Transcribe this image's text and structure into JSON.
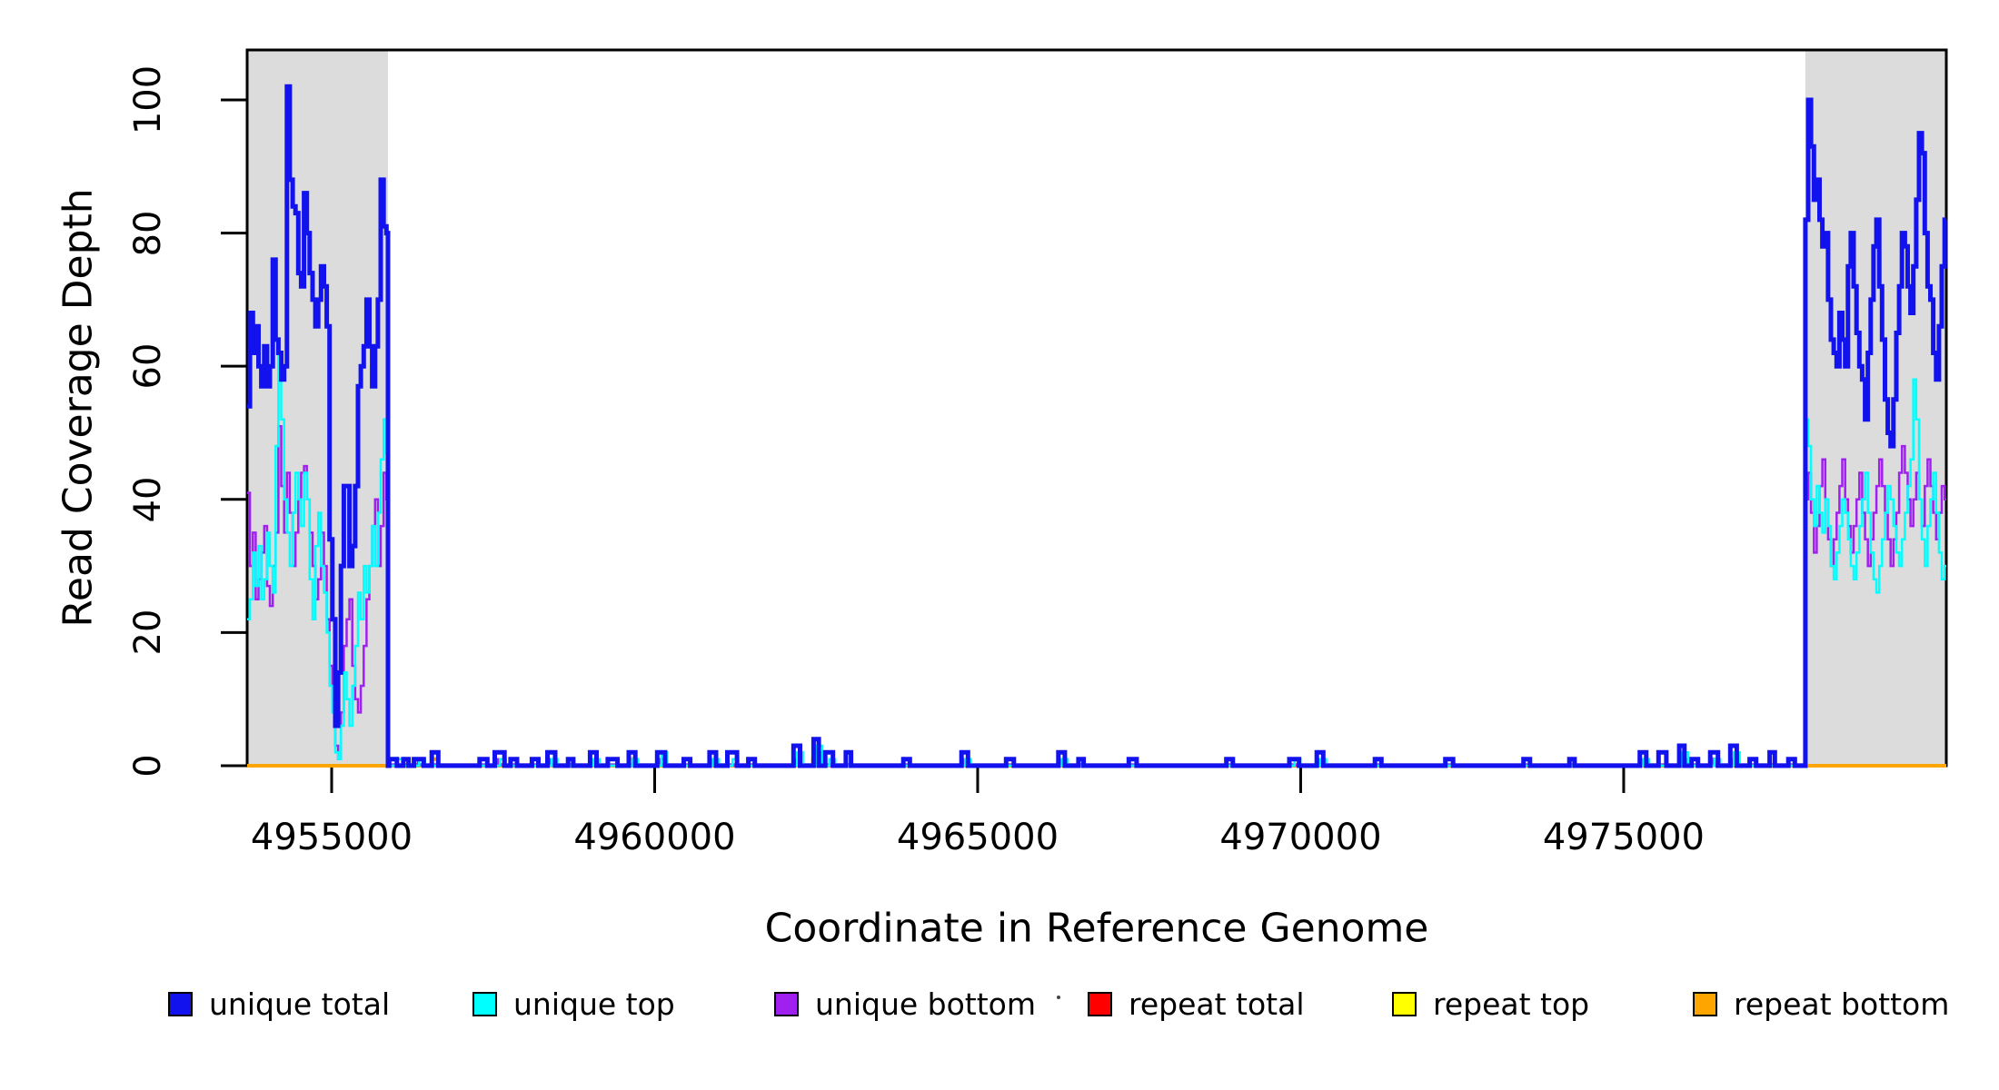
{
  "chart_data": {
    "type": "line",
    "subtype": "step-coverage",
    "title": "",
    "xlabel": "Coordinate in Reference Genome",
    "ylabel": "Read Coverage Depth",
    "xlim": [
      4953692,
      4979994
    ],
    "ylim": [
      0,
      107.5
    ],
    "x_ticks": [
      4955000,
      4960000,
      4965000,
      4970000,
      4975000
    ],
    "x_tick_labels": [
      "4955000",
      "4960000",
      "4965000",
      "4970000",
      "4975000"
    ],
    "y_ticks": [
      0,
      20,
      40,
      60,
      80,
      100
    ],
    "y_tick_labels": [
      "0",
      "20",
      "40",
      "60",
      "80",
      "100"
    ],
    "grid": false,
    "legend_position": "bottom",
    "background_color": "#ffffff",
    "shaded_regions": [
      {
        "name": "left-flank-highlight",
        "start": 4953692,
        "end": 4955872,
        "color": "#DCDCDC"
      },
      {
        "name": "right-flank-highlight",
        "start": 4977812,
        "end": 4979994,
        "color": "#DCDCDC"
      }
    ],
    "baseline_blend_color": "#7B52D6",
    "bin_size": 44,
    "legend": [
      {
        "label": "unique total",
        "color": "#1212EE"
      },
      {
        "label": "unique top",
        "color": "#00FFFF"
      },
      {
        "label": "unique bottom",
        "color": "#A020F0"
      },
      {
        "label": "repeat total",
        "color": "#FF0000"
      },
      {
        "label": "repeat top",
        "color": "#FFFF00"
      },
      {
        "label": "repeat bottom",
        "color": "#FFA500"
      }
    ],
    "series": [
      {
        "name": "repeat total",
        "color": "#FF0000",
        "stroke_width": 2.5,
        "left_flank": null,
        "right_flank": null,
        "mid_bumps": [],
        "flat_value": 0
      },
      {
        "name": "repeat top",
        "color": "#FFFF00",
        "stroke_width": 2.5,
        "left_flank": null,
        "right_flank": null,
        "flat_value": 0,
        "mid_bumps": [
          [
            4959650,
            1,
            100
          ],
          [
            4962500,
            1,
            90
          ],
          [
            4976700,
            1,
            90
          ]
        ]
      },
      {
        "name": "repeat bottom",
        "color": "#FFA500",
        "stroke_width": 4,
        "left_flank": null,
        "right_flank": null,
        "flat_value": 0,
        "mid_bumps": [
          [
            4956600,
            1,
            90
          ],
          [
            4959650,
            1,
            90
          ],
          [
            4962500,
            1,
            100
          ],
          [
            4976400,
            1,
            90
          ]
        ]
      },
      {
        "name": "unique bottom",
        "color": "#A020F0",
        "stroke_width": 2.5,
        "left_flank": {
          "start": 4953692,
          "values": [
            41,
            30,
            35,
            25,
            28,
            32,
            36,
            27,
            24,
            30,
            35,
            51,
            42,
            35,
            44,
            38,
            30,
            35,
            40,
            44,
            45,
            40,
            35,
            30,
            25,
            28,
            35,
            30,
            22,
            15,
            10,
            3,
            1,
            8,
            18,
            22,
            25,
            15,
            10,
            8,
            12,
            18,
            25,
            30,
            36,
            40,
            30,
            36,
            44,
            40
          ]
        },
        "mid_bumps": [
          [
            4956380,
            1,
            90
          ],
          [
            4957620,
            1,
            90
          ],
          [
            4958420,
            1,
            90
          ],
          [
            4959080,
            1,
            90
          ],
          [
            4960120,
            1,
            90
          ],
          [
            4960920,
            1,
            90
          ],
          [
            4962230,
            1,
            90
          ],
          [
            4962530,
            2,
            90
          ],
          [
            4964820,
            1,
            90
          ],
          [
            4966320,
            1,
            90
          ],
          [
            4970320,
            1,
            90
          ],
          [
            4975330,
            1,
            90
          ],
          [
            4975930,
            1,
            90
          ],
          [
            4976430,
            1,
            90
          ],
          [
            4976730,
            1,
            90
          ]
        ],
        "right_flank": {
          "start": 4977812,
          "values": [
            40,
            44,
            38,
            32,
            36,
            42,
            46,
            40,
            34,
            30,
            34,
            38,
            42,
            46,
            40,
            36,
            32,
            36,
            40,
            44,
            38,
            34,
            30,
            34,
            38,
            42,
            46,
            42,
            38,
            34,
            30,
            34,
            38,
            44,
            48,
            44,
            40,
            36,
            40,
            44,
            40,
            36,
            42,
            46,
            42,
            38,
            34,
            38,
            42,
            40
          ]
        }
      },
      {
        "name": "unique top",
        "color": "#00FFFF",
        "stroke_width": 2.5,
        "left_flank": {
          "start": 4953692,
          "values": [
            22,
            25,
            32,
            27,
            33,
            25,
            28,
            35,
            30,
            26,
            48,
            62,
            52,
            40,
            35,
            30,
            38,
            44,
            40,
            36,
            44,
            40,
            28,
            22,
            33,
            38,
            30,
            26,
            20,
            12,
            8,
            2,
            1,
            6,
            14,
            10,
            6,
            12,
            18,
            26,
            22,
            30,
            26,
            30,
            36,
            30,
            38,
            46,
            52,
            47
          ]
        },
        "mid_bumps": [
          [
            4956050,
            1,
            90
          ],
          [
            4956400,
            1,
            90
          ],
          [
            4957650,
            1,
            90
          ],
          [
            4958450,
            1,
            90
          ],
          [
            4959100,
            1,
            90
          ],
          [
            4959700,
            1,
            90
          ],
          [
            4960150,
            2,
            90
          ],
          [
            4960950,
            1,
            90
          ],
          [
            4961250,
            1,
            90
          ],
          [
            4962250,
            2,
            90
          ],
          [
            4962550,
            3,
            90
          ],
          [
            4962750,
            1,
            90
          ],
          [
            4964850,
            1,
            90
          ],
          [
            4966350,
            1,
            90
          ],
          [
            4969950,
            1,
            90
          ],
          [
            4970350,
            1,
            90
          ],
          [
            4975350,
            1,
            90
          ],
          [
            4975950,
            2,
            90
          ],
          [
            4976450,
            1,
            90
          ],
          [
            4976750,
            2,
            90
          ]
        ],
        "right_flank": {
          "start": 4977812,
          "values": [
            52,
            48,
            40,
            36,
            42,
            38,
            35,
            40,
            36,
            30,
            28,
            32,
            36,
            40,
            38,
            34,
            30,
            28,
            32,
            36,
            40,
            44,
            38,
            32,
            28,
            26,
            30,
            34,
            38,
            42,
            40,
            36,
            32,
            30,
            34,
            38,
            42,
            46,
            58,
            52,
            40,
            34,
            30,
            36,
            40,
            44,
            38,
            32,
            28,
            30
          ]
        }
      },
      {
        "name": "unique total",
        "color": "#1212EE",
        "stroke_width": 5,
        "left_flank": {
          "start": 4953692,
          "values": [
            54,
            68,
            62,
            66,
            60,
            57,
            63,
            57,
            60,
            76,
            64,
            62,
            58,
            60,
            102,
            88,
            84,
            83,
            74,
            72,
            86,
            80,
            74,
            70,
            66,
            70,
            75,
            72,
            66,
            34,
            22,
            6,
            14,
            30,
            42,
            42,
            30,
            33,
            42,
            57,
            60,
            63,
            70,
            63,
            57,
            63,
            70,
            88,
            81,
            80
          ]
        },
        "mid_bumps": [
          [
            4955950,
            1,
            120
          ],
          [
            4956150,
            1,
            80
          ],
          [
            4956350,
            1,
            150
          ],
          [
            4956600,
            2,
            100
          ],
          [
            4957350,
            1,
            120
          ],
          [
            4957600,
            2,
            150
          ],
          [
            4957820,
            1,
            100
          ],
          [
            4958150,
            1,
            100
          ],
          [
            4958400,
            2,
            120
          ],
          [
            4958700,
            1,
            80
          ],
          [
            4959050,
            2,
            100
          ],
          [
            4959350,
            1,
            150
          ],
          [
            4959650,
            2,
            100
          ],
          [
            4960100,
            2,
            120
          ],
          [
            4960500,
            1,
            100
          ],
          [
            4960900,
            2,
            100
          ],
          [
            4961200,
            2,
            150
          ],
          [
            4961500,
            1,
            100
          ],
          [
            4962200,
            3,
            100
          ],
          [
            4962500,
            4,
            80
          ],
          [
            4962700,
            2,
            120
          ],
          [
            4963000,
            2,
            80
          ],
          [
            4963900,
            1,
            100
          ],
          [
            4964800,
            2,
            100
          ],
          [
            4965500,
            1,
            120
          ],
          [
            4966300,
            2,
            100
          ],
          [
            4966600,
            1,
            80
          ],
          [
            4967400,
            1,
            120
          ],
          [
            4968900,
            1,
            100
          ],
          [
            4969900,
            1,
            150
          ],
          [
            4970300,
            2,
            100
          ],
          [
            4971200,
            1,
            100
          ],
          [
            4972300,
            1,
            120
          ],
          [
            4973500,
            1,
            100
          ],
          [
            4974200,
            1,
            80
          ],
          [
            4975300,
            2,
            100
          ],
          [
            4975600,
            2,
            120
          ],
          [
            4975900,
            3,
            80
          ],
          [
            4976100,
            1,
            100
          ],
          [
            4976400,
            2,
            120
          ],
          [
            4976700,
            3,
            100
          ],
          [
            4977000,
            1,
            100
          ],
          [
            4977300,
            2,
            80
          ],
          [
            4977600,
            1,
            100
          ]
        ],
        "right_flank": {
          "start": 4977812,
          "values": [
            82,
            100,
            93,
            85,
            88,
            82,
            78,
            80,
            70,
            64,
            62,
            60,
            68,
            64,
            60,
            75,
            80,
            72,
            65,
            60,
            58,
            52,
            62,
            70,
            78,
            82,
            72,
            64,
            55,
            50,
            48,
            55,
            65,
            72,
            80,
            78,
            72,
            68,
            75,
            85,
            95,
            92,
            80,
            72,
            70,
            62,
            58,
            66,
            75,
            82
          ]
        }
      }
    ]
  }
}
